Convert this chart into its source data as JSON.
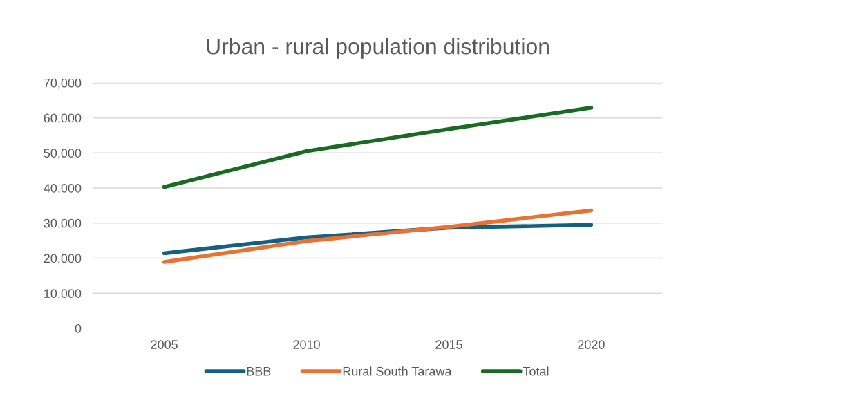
{
  "chart_data": {
    "type": "line",
    "title": "Urban - rural population distribution",
    "categories": [
      "2005",
      "2010",
      "2015",
      "2020"
    ],
    "series": [
      {
        "name": "BBB",
        "color": "#156082",
        "values": [
          21400,
          25900,
          28700,
          29500
        ]
      },
      {
        "name": "Rural South Tarawa",
        "color": "#e97132",
        "values": [
          18900,
          24900,
          28900,
          33600
        ]
      },
      {
        "name": "Total",
        "color": "#196b24",
        "values": [
          40300,
          50500,
          56800,
          62900
        ]
      }
    ],
    "ylim": [
      0,
      70000
    ],
    "yticks": [
      {
        "value": 0,
        "label": "0"
      },
      {
        "value": 10000,
        "label": "10,000"
      },
      {
        "value": 20000,
        "label": "20,000"
      },
      {
        "value": 30000,
        "label": "30,000"
      },
      {
        "value": 40000,
        "label": "40,000"
      },
      {
        "value": 50000,
        "label": "50,000"
      },
      {
        "value": 60000,
        "label": "60,000"
      },
      {
        "value": 70000,
        "label": "70,000"
      }
    ],
    "grid": "y",
    "legend": "bottom",
    "marker": "none",
    "line_style": "solid"
  }
}
